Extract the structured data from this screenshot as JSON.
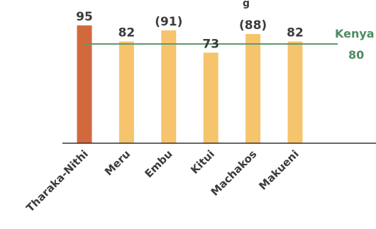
{
  "chart_data": {
    "type": "bar",
    "title_partial": "g",
    "categories": [
      "Tharaka-Nithi",
      "Meru",
      "Embu",
      "Kitui",
      "Machakos",
      "Makueni"
    ],
    "values": [
      95,
      82,
      91,
      73,
      88,
      82
    ],
    "value_labels": [
      "95",
      "82",
      "(91)",
      "73",
      "(88)",
      "82"
    ],
    "highlight_index": 0,
    "reference_line": {
      "label": "Kenya",
      "value_label": "80",
      "value": 80
    },
    "colors": {
      "highlight": "#d2693c",
      "bar": "#f6c46c",
      "reference": "#5a9a70",
      "axis": "#333333",
      "text": "#3b3b3b"
    },
    "ylim": [
      0,
      100
    ]
  }
}
